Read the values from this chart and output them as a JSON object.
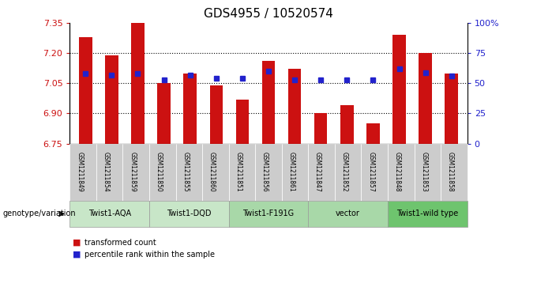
{
  "title": "GDS4955 / 10520574",
  "samples": [
    "GSM1211849",
    "GSM1211854",
    "GSM1211859",
    "GSM1211850",
    "GSM1211855",
    "GSM1211860",
    "GSM1211851",
    "GSM1211856",
    "GSM1211861",
    "GSM1211847",
    "GSM1211852",
    "GSM1211857",
    "GSM1211848",
    "GSM1211853",
    "GSM1211858"
  ],
  "transformed_count": [
    7.28,
    7.19,
    7.35,
    7.05,
    7.1,
    7.04,
    6.97,
    7.16,
    7.12,
    6.9,
    6.94,
    6.85,
    7.29,
    7.2,
    7.1
  ],
  "percentile_rank": [
    58,
    57,
    58,
    53,
    57,
    54,
    54,
    60,
    53,
    53,
    53,
    53,
    62,
    59,
    56
  ],
  "ylim_left": [
    6.75,
    7.35
  ],
  "ylim_right": [
    0,
    100
  ],
  "yticks_left": [
    6.75,
    6.9,
    7.05,
    7.2,
    7.35
  ],
  "yticks_right": [
    0,
    25,
    50,
    75,
    100
  ],
  "bar_color": "#cc1111",
  "dot_color": "#2222cc",
  "groups": [
    {
      "label": "Twist1-AQA",
      "start": 0,
      "end": 3,
      "color": "#c8e6c8"
    },
    {
      "label": "Twist1-DQD",
      "start": 3,
      "end": 6,
      "color": "#c8e6c8"
    },
    {
      "label": "Twist1-F191G",
      "start": 6,
      "end": 9,
      "color": "#a8d8a8"
    },
    {
      "label": "vector",
      "start": 9,
      "end": 12,
      "color": "#a8d8a8"
    },
    {
      "label": "Twist1-wild type",
      "start": 12,
      "end": 15,
      "color": "#6ec46e"
    }
  ],
  "sample_bg_color": "#cccccc",
  "legend_bar_label": "transformed count",
  "legend_dot_label": "percentile rank within the sample",
  "genotype_label": "genotype/variation",
  "title_fontsize": 11,
  "axis_label_color_left": "#cc1111",
  "axis_label_color_right": "#2222cc"
}
